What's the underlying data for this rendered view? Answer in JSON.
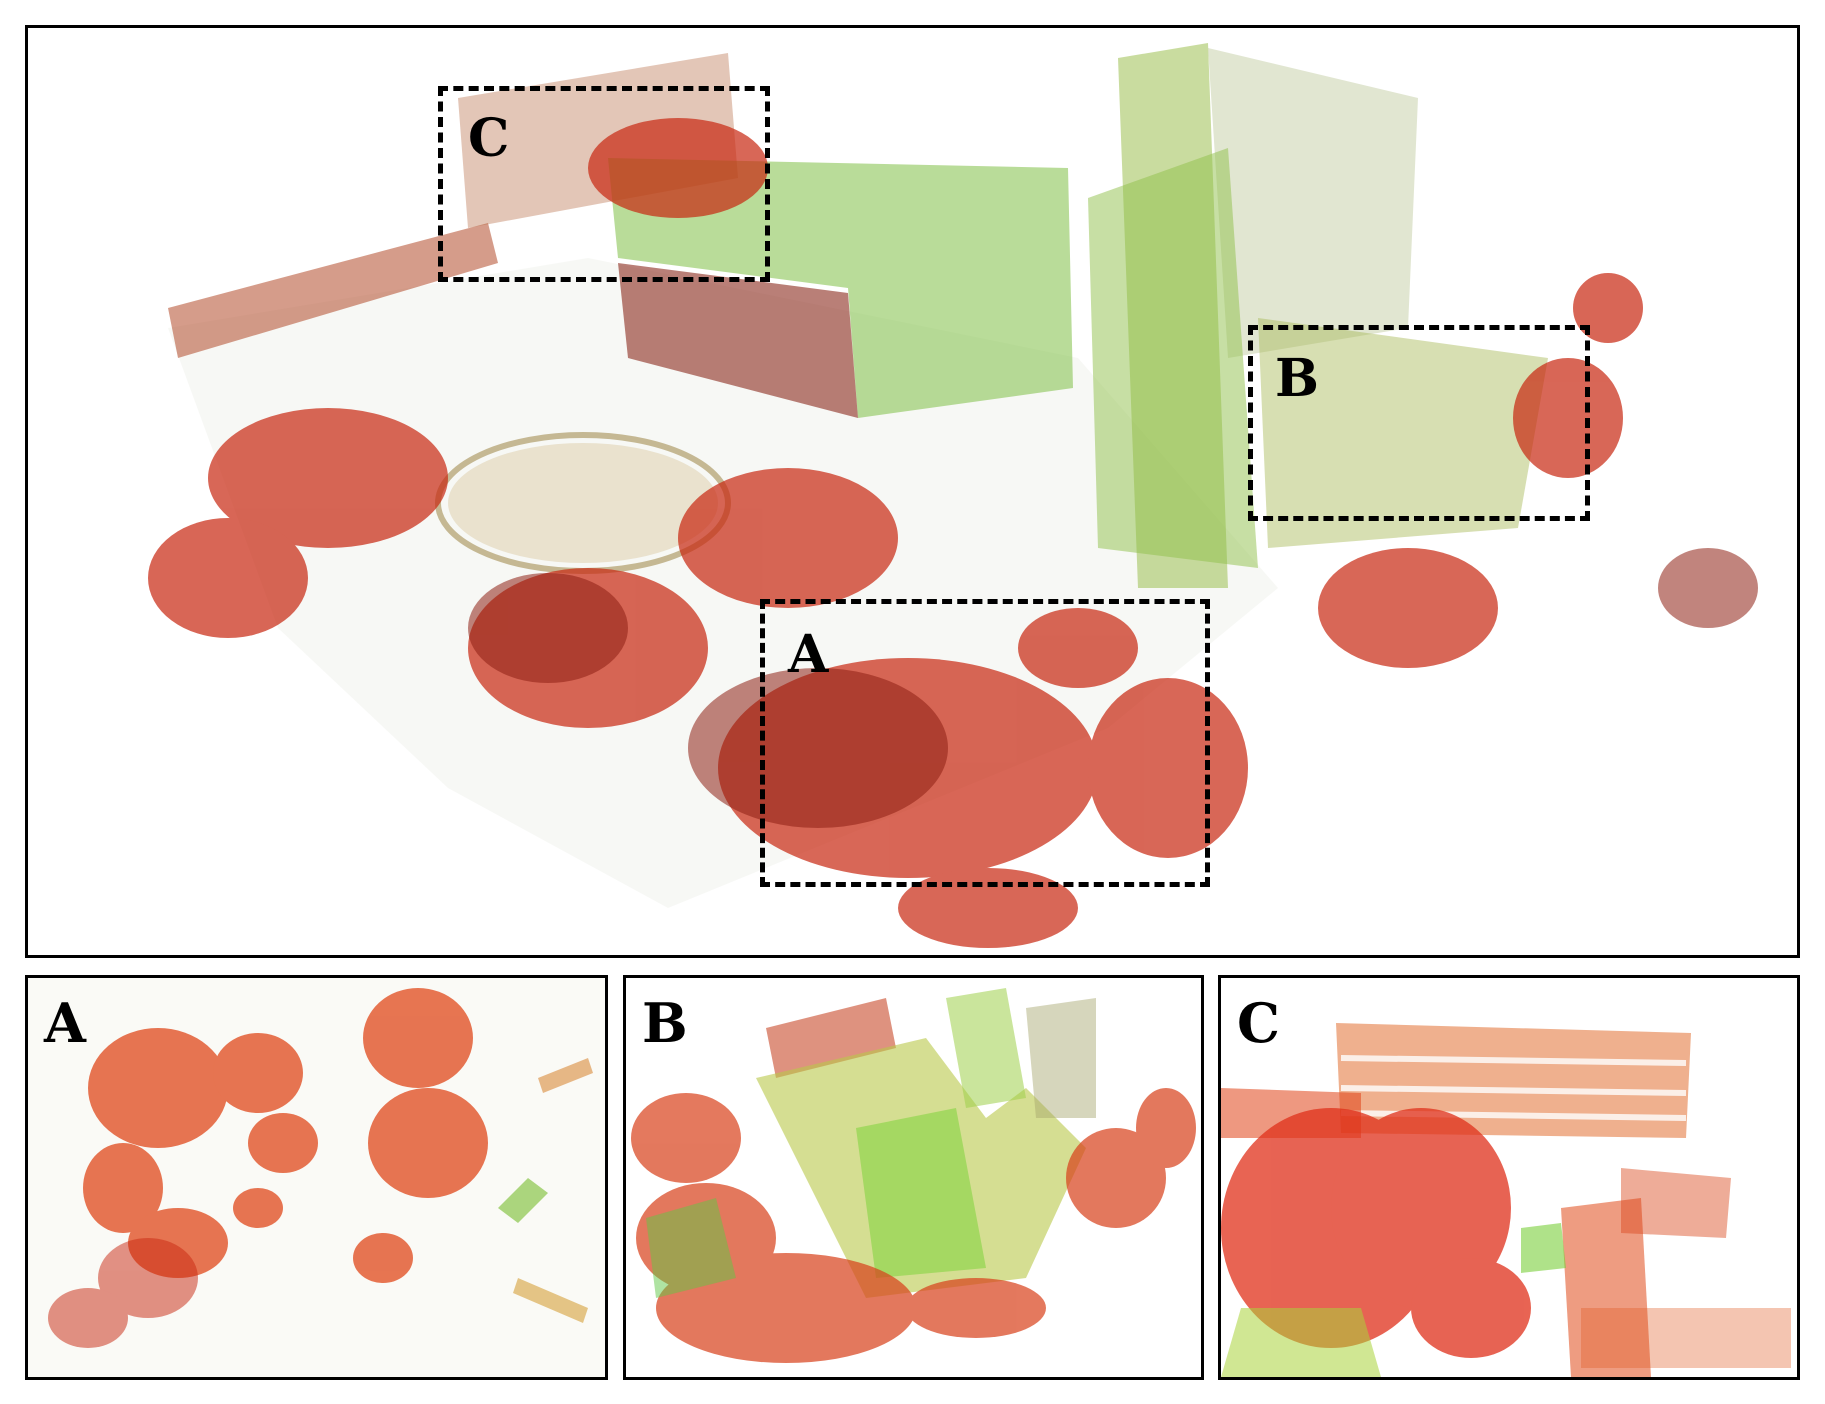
{
  "main": {
    "roi_labels": {
      "c": "C",
      "b": "B",
      "a": "A"
    }
  },
  "subpanels": {
    "a": {
      "label": "A"
    },
    "b": {
      "label": "B"
    },
    "c": {
      "label": "C"
    }
  },
  "colors": {
    "frame": "#000000",
    "background": "#ffffff",
    "cloud_red": "#c8260f",
    "cloud_orange": "#e0620e",
    "cloud_yellow": "#c9c21a",
    "cloud_green": "#6ccf2e"
  }
}
